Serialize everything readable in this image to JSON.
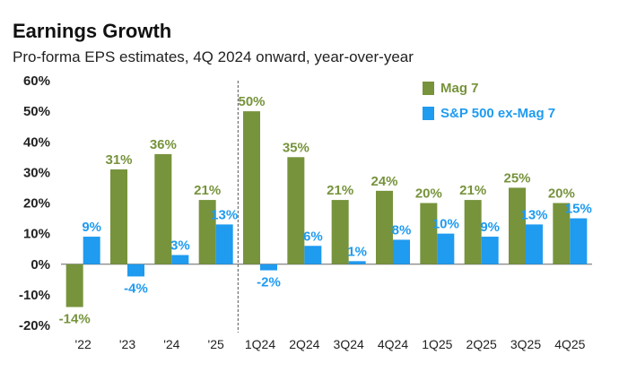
{
  "chart_data": {
    "type": "bar",
    "title": "Earnings Growth",
    "subtitle": "Pro-forma EPS estimates, 4Q 2024 onward, year-over-year",
    "xlabel": "",
    "ylabel": "",
    "ylim": [
      -20,
      60
    ],
    "yticks": [
      "60%",
      "50%",
      "40%",
      "30%",
      "20%",
      "10%",
      "0%",
      "-10%",
      "-20%"
    ],
    "ytick_values": [
      60,
      50,
      40,
      30,
      20,
      10,
      0,
      -10,
      -20
    ],
    "categories": [
      "'22",
      "'23",
      "'24",
      "'25",
      "1Q24",
      "2Q24",
      "3Q24",
      "4Q24",
      "1Q25",
      "2Q25",
      "3Q25",
      "4Q25"
    ],
    "divider_after_index": 3,
    "series": [
      {
        "name": "Mag 7",
        "color": "#77933c",
        "label_color": "#77933c",
        "values": [
          -14,
          31,
          36,
          21,
          50,
          35,
          21,
          24,
          20,
          21,
          25,
          20
        ],
        "labels": [
          "-14%",
          "31%",
          "36%",
          "21%",
          "50%",
          "35%",
          "21%",
          "24%",
          "20%",
          "21%",
          "25%",
          "20%"
        ]
      },
      {
        "name": "S&P 500 ex-Mag 7",
        "color": "#1f9bf0",
        "label_color": "#1f9bf0",
        "values": [
          9,
          -4,
          3,
          13,
          -2,
          6,
          1,
          8,
          10,
          9,
          13,
          15
        ],
        "labels": [
          "9%",
          "-4%",
          "3%",
          "13%",
          "-2%",
          "6%",
          "1%",
          "8%",
          "10%",
          "9%",
          "13%",
          "15%"
        ]
      }
    ],
    "legend_position": "top-right"
  }
}
